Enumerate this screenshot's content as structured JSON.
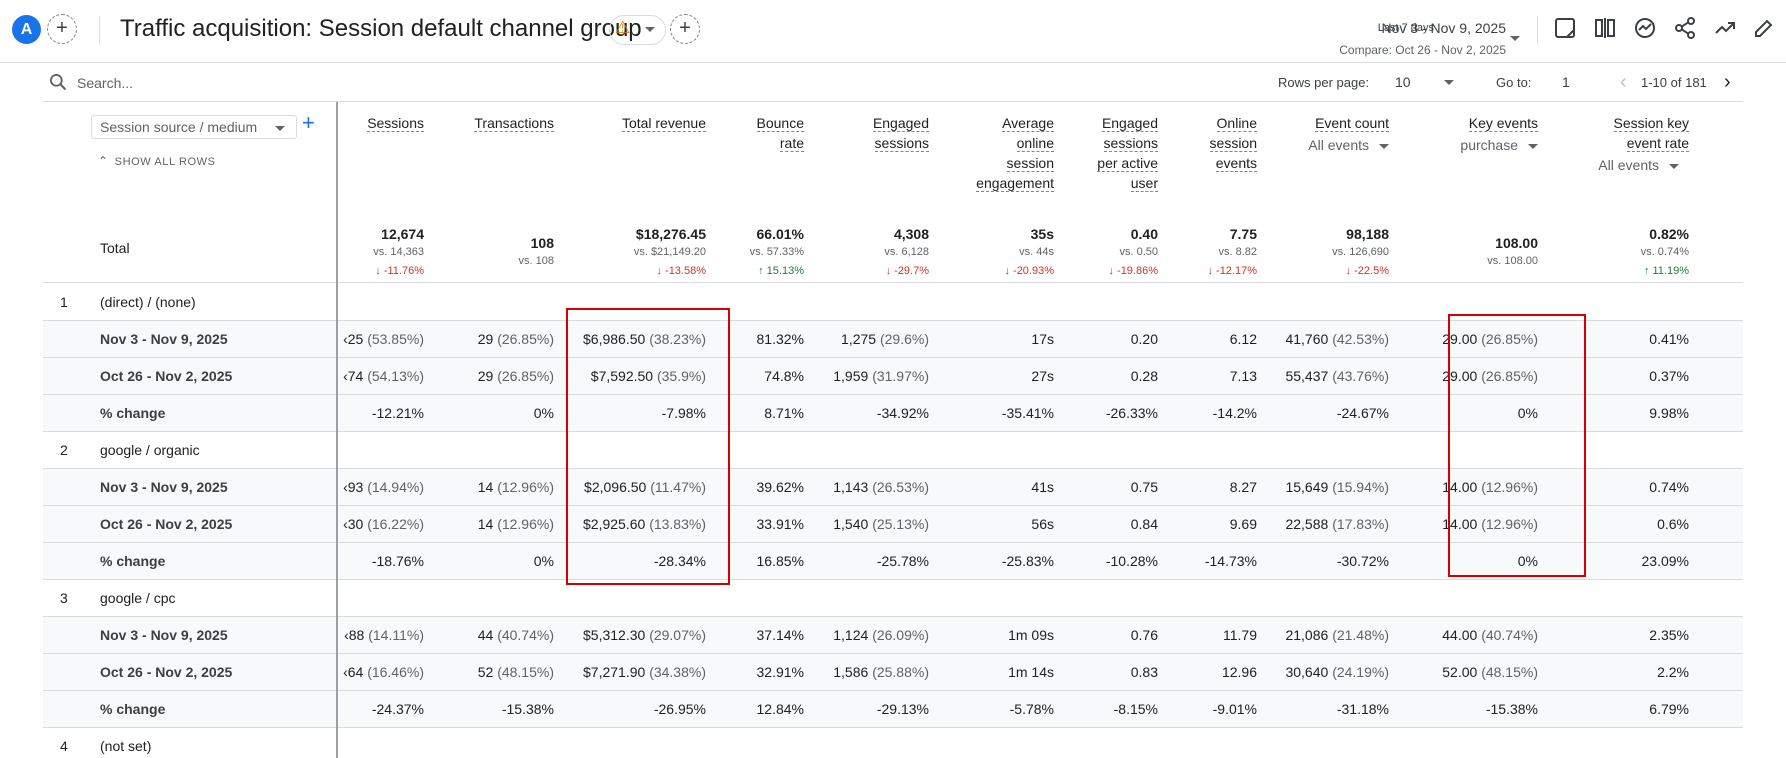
{
  "header": {
    "avatar": "A",
    "title": "Traffic acquisition: Session default channel group",
    "date_preset": "Last 7 days",
    "date_range": "Nov 3 - Nov 9, 2025",
    "compare": "Compare: Oct 26 - Nov 2, 2025",
    "icons": [
      "add-comparison-icon",
      "customize-report-icon",
      "compare-icon",
      "insights-icon",
      "share-icon",
      "trend-icon",
      "edit-icon"
    ]
  },
  "toolbar": {
    "search_placeholder": "Search...",
    "rows_per_page_label": "Rows per page:",
    "rows_per_page": "10",
    "goto_label": "Go to:",
    "goto_value": "1",
    "pagination": "1-10 of 181"
  },
  "table": {
    "dimension": "Session source / medium",
    "show_all_rows": "SHOW ALL ROWS",
    "columns": [
      {
        "label": "Sessions"
      },
      {
        "label": "Transactions"
      },
      {
        "label": "Total revenue"
      },
      {
        "label": "Bounce rate"
      },
      {
        "label": "Engaged sessions"
      },
      {
        "label": "Average online session engagement"
      },
      {
        "label": "Engaged sessions per active user"
      },
      {
        "label": "Online session events"
      },
      {
        "label": "Event count",
        "sub": "All events"
      },
      {
        "label": "Key events",
        "sub": "purchase"
      },
      {
        "label": "Session key event rate",
        "sub": "All events"
      }
    ],
    "total": {
      "label": "Total",
      "cells": [
        {
          "v": "12,674",
          "vs": "vs. 14,363",
          "ch": "↓ -11.76%",
          "dir": "down"
        },
        {
          "v": "108",
          "vs": "vs. 108",
          "ch": "",
          "dir": ""
        },
        {
          "v": "$18,276.45",
          "vs": "vs. $21,149.20",
          "ch": "↓ -13.58%",
          "dir": "down"
        },
        {
          "v": "66.01%",
          "vs": "vs. 57.33%",
          "ch": "↑ 15.13%",
          "dir": "up"
        },
        {
          "v": "4,308",
          "vs": "vs. 6,128",
          "ch": "↓ -29.7%",
          "dir": "down"
        },
        {
          "v": "35s",
          "vs": "vs. 44s",
          "ch": "↓ -20.93%",
          "dir": "down"
        },
        {
          "v": "0.40",
          "vs": "vs. 0.50",
          "ch": "↓ -19.86%",
          "dir": "down"
        },
        {
          "v": "7.75",
          "vs": "vs. 8.82",
          "ch": "↓ -12.17%",
          "dir": "down"
        },
        {
          "v": "98,188",
          "vs": "vs. 126,690",
          "ch": "↓ -22.5%",
          "dir": "down"
        },
        {
          "v": "108.00",
          "vs": "vs. 108.00",
          "ch": "",
          "dir": ""
        },
        {
          "v": "0.82%",
          "vs": "vs. 0.74%",
          "ch": "↑ 11.19%",
          "dir": "up"
        }
      ]
    },
    "groups": [
      {
        "index": "1",
        "name": "(direct) / (none)",
        "rows": [
          {
            "label": "Nov 3 - Nov 9, 2025",
            "cells": [
              [
                "‹25",
                "(53.85%)"
              ],
              [
                "29",
                "(26.85%)"
              ],
              [
                "$6,986.50",
                "(38.23%)"
              ],
              [
                "81.32%",
                ""
              ],
              [
                "1,275",
                "(29.6%)"
              ],
              [
                "17s",
                ""
              ],
              [
                "0.20",
                ""
              ],
              [
                "6.12",
                ""
              ],
              [
                "41,760",
                "(42.53%)"
              ],
              [
                "29.00",
                "(26.85%)"
              ],
              [
                "0.41%",
                ""
              ]
            ]
          },
          {
            "label": "Oct 26 - Nov 2, 2025",
            "cells": [
              [
                "‹74",
                "(54.13%)"
              ],
              [
                "29",
                "(26.85%)"
              ],
              [
                "$7,592.50",
                "(35.9%)"
              ],
              [
                "74.8%",
                ""
              ],
              [
                "1,959",
                "(31.97%)"
              ],
              [
                "27s",
                ""
              ],
              [
                "0.28",
                ""
              ],
              [
                "7.13",
                ""
              ],
              [
                "55,437",
                "(43.76%)"
              ],
              [
                "29.00",
                "(26.85%)"
              ],
              [
                "0.37%",
                ""
              ]
            ]
          },
          {
            "label": "% change",
            "cells": [
              [
                "-12.21%",
                ""
              ],
              [
                "0%",
                ""
              ],
              [
                "-7.98%",
                ""
              ],
              [
                "8.71%",
                ""
              ],
              [
                "-34.92%",
                ""
              ],
              [
                "-35.41%",
                ""
              ],
              [
                "-26.33%",
                ""
              ],
              [
                "-14.2%",
                ""
              ],
              [
                "-24.67%",
                ""
              ],
              [
                "0%",
                ""
              ],
              [
                "9.98%",
                ""
              ]
            ]
          }
        ]
      },
      {
        "index": "2",
        "name": "google / organic",
        "rows": [
          {
            "label": "Nov 3 - Nov 9, 2025",
            "cells": [
              [
                "‹93",
                "(14.94%)"
              ],
              [
                "14",
                "(12.96%)"
              ],
              [
                "$2,096.50",
                "(11.47%)"
              ],
              [
                "39.62%",
                ""
              ],
              [
                "1,143",
                "(26.53%)"
              ],
              [
                "41s",
                ""
              ],
              [
                "0.75",
                ""
              ],
              [
                "8.27",
                ""
              ],
              [
                "15,649",
                "(15.94%)"
              ],
              [
                "14.00",
                "(12.96%)"
              ],
              [
                "0.74%",
                ""
              ]
            ]
          },
          {
            "label": "Oct 26 - Nov 2, 2025",
            "cells": [
              [
                "‹30",
                "(16.22%)"
              ],
              [
                "14",
                "(12.96%)"
              ],
              [
                "$2,925.60",
                "(13.83%)"
              ],
              [
                "33.91%",
                ""
              ],
              [
                "1,540",
                "(25.13%)"
              ],
              [
                "56s",
                ""
              ],
              [
                "0.84",
                ""
              ],
              [
                "9.69",
                ""
              ],
              [
                "22,588",
                "(17.83%)"
              ],
              [
                "14.00",
                "(12.96%)"
              ],
              [
                "0.6%",
                ""
              ]
            ]
          },
          {
            "label": "% change",
            "cells": [
              [
                "-18.76%",
                ""
              ],
              [
                "0%",
                ""
              ],
              [
                "-28.34%",
                ""
              ],
              [
                "16.85%",
                ""
              ],
              [
                "-25.78%",
                ""
              ],
              [
                "-25.83%",
                ""
              ],
              [
                "-10.28%",
                ""
              ],
              [
                "-14.73%",
                ""
              ],
              [
                "-30.72%",
                ""
              ],
              [
                "0%",
                ""
              ],
              [
                "23.09%",
                ""
              ]
            ]
          }
        ]
      },
      {
        "index": "3",
        "name": "google / cpc",
        "rows": [
          {
            "label": "Nov 3 - Nov 9, 2025",
            "cells": [
              [
                "‹88",
                "(14.11%)"
              ],
              [
                "44",
                "(40.74%)"
              ],
              [
                "$5,312.30",
                "(29.07%)"
              ],
              [
                "37.14%",
                ""
              ],
              [
                "1,124",
                "(26.09%)"
              ],
              [
                "1m 09s",
                ""
              ],
              [
                "0.76",
                ""
              ],
              [
                "11.79",
                ""
              ],
              [
                "21,086",
                "(21.48%)"
              ],
              [
                "44.00",
                "(40.74%)"
              ],
              [
                "2.35%",
                ""
              ]
            ]
          },
          {
            "label": "Oct 26 - Nov 2, 2025",
            "cells": [
              [
                "‹64",
                "(16.46%)"
              ],
              [
                "52",
                "(48.15%)"
              ],
              [
                "$7,271.90",
                "(34.38%)"
              ],
              [
                "32.91%",
                ""
              ],
              [
                "1,586",
                "(25.88%)"
              ],
              [
                "1m 14s",
                ""
              ],
              [
                "0.83",
                ""
              ],
              [
                "12.96",
                ""
              ],
              [
                "30,640",
                "(24.19%)"
              ],
              [
                "52.00",
                "(48.15%)"
              ],
              [
                "2.2%",
                ""
              ]
            ]
          },
          {
            "label": "% change",
            "cells": [
              [
                "-24.37%",
                ""
              ],
              [
                "-15.38%",
                ""
              ],
              [
                "-26.95%",
                ""
              ],
              [
                "12.84%",
                ""
              ],
              [
                "-29.13%",
                ""
              ],
              [
                "-5.78%",
                ""
              ],
              [
                "-8.15%",
                ""
              ],
              [
                "-9.01%",
                ""
              ],
              [
                "-31.18%",
                ""
              ],
              [
                "-15.38%",
                ""
              ],
              [
                "6.79%",
                ""
              ]
            ]
          }
        ]
      },
      {
        "index": "4",
        "name": "(not set)",
        "rows": []
      }
    ]
  }
}
